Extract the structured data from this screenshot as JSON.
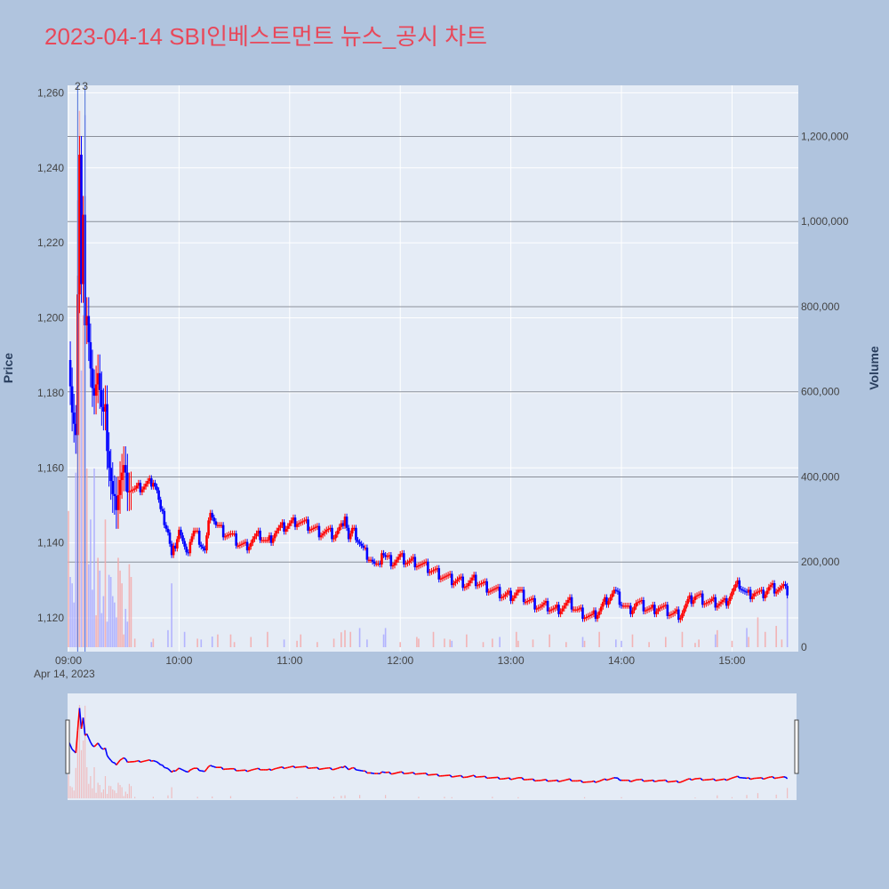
{
  "chart_data": {
    "type": "candlestick",
    "title": "2023-04-14 SBI인베스트먼트 뉴스_공시 차트",
    "date_label": "Apr 14, 2023",
    "y_label": "Price",
    "y2_label": "Volume",
    "y_range": [
      1111,
      1262
    ],
    "y2_range": [
      0,
      1320000
    ],
    "y_ticks": [
      "1,120",
      "1,140",
      "1,160",
      "1,180",
      "1,200",
      "1,220",
      "1,240",
      "1,260"
    ],
    "y2_ticks": [
      "0",
      "200,000",
      "400,000",
      "600,000",
      "800,000",
      "1,000,000",
      "1,200,000"
    ],
    "x_ticks": [
      "09:00",
      "10:00",
      "11:00",
      "12:00",
      "13:00",
      "14:00",
      "15:00"
    ],
    "annotations": [
      {
        "text": "2",
        "time": "09:05"
      },
      {
        "text": "3",
        "time": "09:09"
      }
    ],
    "colors": {
      "up": "#ff0000",
      "down": "#0000ff",
      "up_volume": "#f4a9a9",
      "down_volume": "#aaaaff",
      "title": "#e8485a",
      "background": "#b0c4de",
      "plot_bg": "#e5ecf6"
    },
    "price_path": [
      [
        "09:00",
        1190
      ],
      [
        "09:02",
        1175
      ],
      [
        "09:04",
        1168
      ],
      [
        "09:05",
        1205
      ],
      [
        "09:06",
        1245
      ],
      [
        "09:07",
        1210
      ],
      [
        "09:08",
        1228
      ],
      [
        "09:09",
        1198
      ],
      [
        "09:10",
        1200
      ],
      [
        "09:12",
        1185
      ],
      [
        "09:14",
        1180
      ],
      [
        "09:16",
        1185
      ],
      [
        "09:18",
        1175
      ],
      [
        "09:20",
        1178
      ],
      [
        "09:21",
        1165
      ],
      [
        "09:22",
        1160
      ],
      [
        "09:24",
        1152
      ],
      [
        "09:26",
        1150
      ],
      [
        "09:28",
        1157
      ],
      [
        "09:30",
        1160
      ],
      [
        "09:32",
        1155
      ],
      [
        "09:36",
        1154
      ],
      [
        "09:40",
        1155
      ],
      [
        "09:44",
        1156
      ],
      [
        "09:46",
        1157
      ],
      [
        "09:48",
        1154
      ],
      [
        "09:50",
        1148
      ],
      [
        "09:52",
        1146
      ],
      [
        "09:54",
        1143
      ],
      [
        "09:56",
        1136
      ],
      [
        "09:58",
        1140
      ],
      [
        "10:00",
        1144
      ],
      [
        "10:02",
        1140
      ],
      [
        "10:04",
        1136
      ],
      [
        "10:06",
        1141
      ],
      [
        "10:08",
        1143
      ],
      [
        "10:10",
        1142
      ],
      [
        "10:12",
        1140
      ],
      [
        "10:14",
        1138
      ],
      [
        "10:16",
        1145
      ],
      [
        "10:18",
        1148
      ],
      [
        "10:20",
        1145
      ],
      [
        "10:24",
        1143
      ],
      [
        "10:28",
        1142
      ],
      [
        "10:32",
        1140
      ],
      [
        "10:36",
        1139
      ],
      [
        "10:40",
        1141
      ],
      [
        "10:44",
        1142
      ],
      [
        "10:48",
        1140
      ],
      [
        "10:52",
        1143
      ],
      [
        "10:56",
        1144
      ],
      [
        "11:00",
        1145
      ],
      [
        "11:04",
        1146
      ],
      [
        "11:08",
        1145
      ],
      [
        "11:12",
        1144
      ],
      [
        "11:16",
        1143
      ],
      [
        "11:20",
        1143
      ],
      [
        "11:24",
        1142
      ],
      [
        "11:28",
        1144
      ],
      [
        "11:30",
        1148
      ],
      [
        "11:32",
        1141
      ],
      [
        "11:34",
        1143
      ],
      [
        "11:36",
        1142
      ],
      [
        "11:38",
        1140
      ],
      [
        "11:40",
        1138
      ],
      [
        "11:42",
        1137
      ],
      [
        "11:44",
        1136
      ],
      [
        "11:46",
        1134
      ],
      [
        "11:48",
        1133
      ],
      [
        "11:50",
        1138
      ],
      [
        "11:52",
        1136
      ],
      [
        "11:56",
        1135
      ],
      [
        "12:00",
        1136
      ],
      [
        "12:04",
        1135
      ],
      [
        "12:08",
        1135
      ],
      [
        "12:12",
        1134
      ],
      [
        "12:16",
        1133
      ],
      [
        "12:20",
        1132
      ],
      [
        "12:24",
        1131
      ],
      [
        "12:28",
        1130
      ],
      [
        "12:32",
        1130
      ],
      [
        "12:36",
        1129
      ],
      [
        "12:40",
        1130
      ],
      [
        "12:44",
        1129
      ],
      [
        "12:48",
        1128
      ],
      [
        "12:52",
        1127
      ],
      [
        "12:56",
        1126
      ],
      [
        "13:00",
        1126
      ],
      [
        "13:04",
        1127
      ],
      [
        "13:08",
        1125
      ],
      [
        "13:12",
        1124
      ],
      [
        "13:16",
        1123
      ],
      [
        "13:20",
        1123
      ],
      [
        "13:24",
        1122
      ],
      [
        "13:28",
        1123
      ],
      [
        "13:32",
        1124
      ],
      [
        "13:36",
        1122
      ],
      [
        "13:40",
        1121
      ],
      [
        "13:44",
        1120
      ],
      [
        "13:48",
        1122
      ],
      [
        "13:52",
        1125
      ],
      [
        "13:56",
        1127
      ],
      [
        "14:00",
        1124
      ],
      [
        "14:04",
        1122
      ],
      [
        "14:08",
        1124
      ],
      [
        "14:12",
        1123
      ],
      [
        "14:16",
        1122
      ],
      [
        "14:20",
        1123
      ],
      [
        "14:24",
        1122
      ],
      [
        "14:28",
        1121
      ],
      [
        "14:32",
        1121
      ],
      [
        "14:36",
        1124
      ],
      [
        "14:40",
        1126
      ],
      [
        "14:44",
        1125
      ],
      [
        "14:48",
        1124
      ],
      [
        "14:52",
        1124
      ],
      [
        "14:56",
        1124
      ],
      [
        "15:00",
        1127
      ],
      [
        "15:04",
        1129
      ],
      [
        "15:08",
        1126
      ],
      [
        "15:12",
        1127
      ],
      [
        "15:16",
        1126
      ],
      [
        "15:20",
        1128
      ],
      [
        "15:24",
        1128
      ],
      [
        "15:28",
        1128
      ],
      [
        "15:30",
        1126
      ]
    ],
    "volume_peaks": [
      [
        "09:00",
        320000
      ],
      [
        "09:02",
        150000
      ],
      [
        "09:04",
        410000
      ],
      [
        "09:05",
        1050000
      ],
      [
        "09:06",
        1260000
      ],
      [
        "09:07",
        650000
      ],
      [
        "09:08",
        780000
      ],
      [
        "09:09",
        1250000
      ],
      [
        "09:10",
        420000
      ],
      [
        "09:12",
        300000
      ],
      [
        "09:14",
        420000
      ],
      [
        "09:16",
        210000
      ],
      [
        "09:18",
        80000
      ],
      [
        "09:20",
        300000
      ],
      [
        "09:22",
        170000
      ],
      [
        "09:24",
        120000
      ],
      [
        "09:26",
        70000
      ],
      [
        "09:30",
        30000
      ],
      [
        "09:36",
        20000
      ],
      [
        "09:46",
        20000
      ],
      [
        "09:54",
        40000
      ],
      [
        "09:56",
        150000
      ],
      [
        "10:10",
        20000
      ],
      [
        "10:18",
        25000
      ],
      [
        "10:28",
        30000
      ],
      [
        "11:04",
        15000
      ],
      [
        "11:24",
        20000
      ],
      [
        "11:28",
        35000
      ],
      [
        "11:30",
        40000
      ],
      [
        "11:38",
        45000
      ],
      [
        "11:52",
        45000
      ],
      [
        "12:10",
        20000
      ],
      [
        "12:24",
        20000
      ],
      [
        "12:28",
        15000
      ],
      [
        "12:50",
        20000
      ],
      [
        "13:04",
        15000
      ],
      [
        "13:40",
        15000
      ],
      [
        "14:00",
        15000
      ],
      [
        "14:40",
        10000
      ],
      [
        "14:52",
        40000
      ],
      [
        "15:00",
        15000
      ],
      [
        "15:08",
        45000
      ],
      [
        "15:14",
        70000
      ],
      [
        "15:24",
        50000
      ],
      [
        "15:30",
        140000
      ]
    ]
  }
}
